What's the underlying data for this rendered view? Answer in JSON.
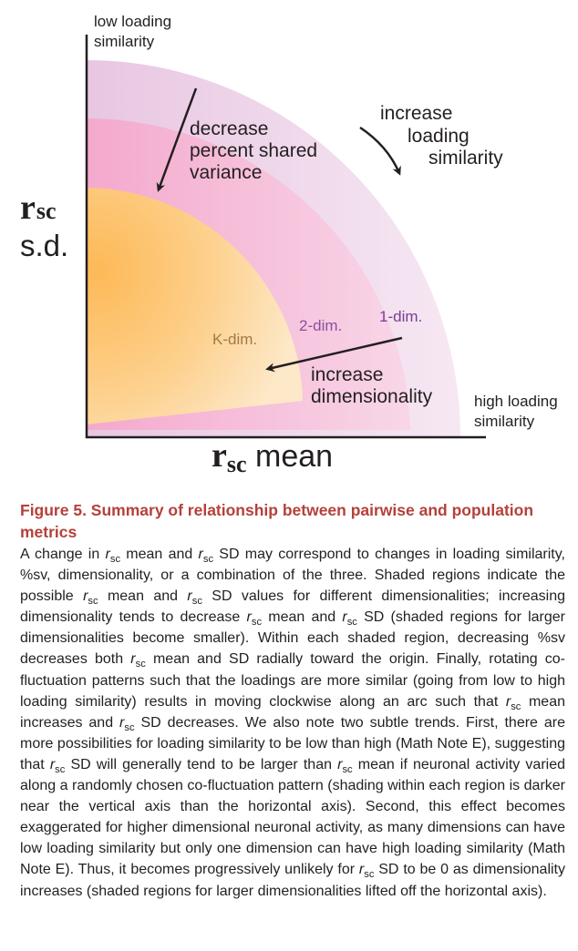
{
  "figure": {
    "y_axis_top_label": [
      "low loading",
      "similarity"
    ],
    "x_axis_right_label": [
      "high loading",
      "similarity"
    ],
    "y_axis_label": {
      "symbol": "r",
      "sub": "sc",
      "line2": "s.d."
    },
    "x_axis_label": {
      "symbol": "r",
      "sub": "sc",
      "rest": " mean"
    },
    "annotation_shared_variance": [
      "decrease",
      "percent shared",
      "variance"
    ],
    "annotation_loading": [
      "increase",
      "loading",
      "similarity"
    ],
    "annotation_dim": [
      "increase",
      "dimensionality"
    ],
    "region_1dim": "1-dim.",
    "region_2dim": "2-dim.",
    "region_kdim": "K-dim.",
    "colors": {
      "region_1dim": "#eed6ea",
      "region_2dim": "#f4b8d4",
      "region_kdim": "#fcc173",
      "label_1dim": "#7a3e92",
      "label_2dim": "#8e4fa0",
      "label_kdim": "#a07b45"
    }
  },
  "caption": {
    "title": "Figure 5.  Summary of relationship between pairwise and population metrics",
    "sub": "sc",
    "segments": [
      "A change in ",
      " mean and ",
      " SD may correspond to changes in loading similarity, %sv, dimensionality, or a combination of the three. Shaded regions indicate the possible ",
      " mean and ",
      " SD values for different dimensionalities; increasing dimensionality tends to decrease ",
      " mean and ",
      " SD (shaded regions for larger dimensionalities become smaller). Within each shaded region, decreasing %sv decreases both ",
      " mean and SD radially toward the origin. Finally, rotating co-fluctuation patterns such that the loadings are more similar (going from low to high loading similarity) results in moving clockwise along an arc such that ",
      " mean increases and ",
      " SD decreases. We also note two subtle trends. First, there are more possibilities for loading similarity to be low than high (Math Note E), suggesting that ",
      " SD will generally tend to be larger than ",
      " mean if neuronal activity varied along a randomly chosen co-fluctuation pattern (shading within each region is darker near the vertical axis than the horizontal axis). Second, this effect becomes exaggerated for higher dimensional neuronal activity, as many dimensions can have low loading similarity but only one dimension can have high loading similarity (Math Note E). Thus, it becomes progressively unlikely for ",
      " SD to be 0 as dimensionality increases (shaded regions for larger dimensionalities lifted off the horizontal axis)."
    ]
  }
}
